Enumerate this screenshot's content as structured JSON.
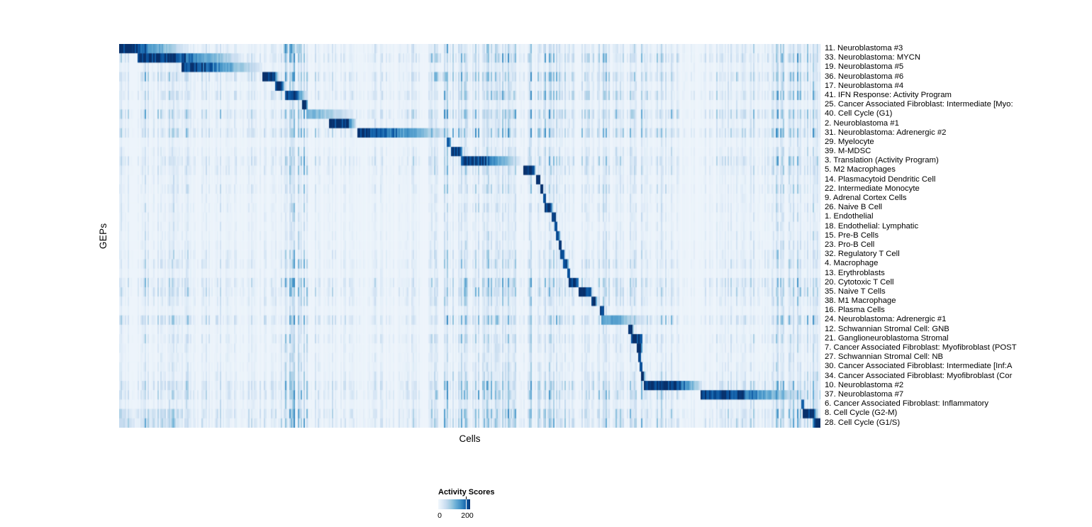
{
  "chart_data": {
    "type": "heatmap",
    "xlabel": "Cells",
    "ylabel": "GEPs",
    "colorbar": {
      "title": "Activity Scores",
      "tick_labels": [
        "0",
        "200"
      ],
      "tick_fraction": 0.867,
      "low_color": "#f2f7fc",
      "high_color": "#08306b"
    },
    "palette": [
      "#f2f7fc",
      "#deebf7",
      "#c6dbef",
      "#9ecae1",
      "#6baed6",
      "#4292c6",
      "#2171b5",
      "#08519c",
      "#08306b"
    ],
    "palette_positions": [
      0,
      0.12,
      0.25,
      0.4,
      0.55,
      0.7,
      0.82,
      0.92,
      1
    ],
    "texture": {
      "bands": [
        [
          0,
          0.1,
          0.55
        ],
        [
          0.1,
          0.235,
          0.45
        ],
        [
          0.235,
          0.27,
          0.95
        ],
        [
          0.27,
          0.44,
          0.35
        ],
        [
          0.44,
          0.52,
          0.85
        ],
        [
          0.52,
          0.63,
          0.9
        ],
        [
          0.63,
          0.7,
          0.55
        ],
        [
          0.7,
          0.8,
          0.65
        ],
        [
          0.8,
          0.86,
          0.35
        ],
        [
          0.86,
          0.935,
          0.55
        ],
        [
          0.935,
          1.0,
          0.95
        ]
      ]
    },
    "rows": [
      {
        "label": "11. Neuroblastoma #3",
        "block": [
          0.0,
          0.025,
          0.093
        ],
        "peak": 1.0,
        "noise": 0.7,
        "extra": [
          [
            0.235,
            0.259,
            0.85
          ]
        ]
      },
      {
        "label": "33. Neuroblastoma: MYCN",
        "block": [
          0.027,
          0.083,
          0.174
        ],
        "peak": 1.0,
        "noise": 1.0,
        "extra": [
          [
            0.444,
            0.458,
            0.55
          ]
        ]
      },
      {
        "label": "19. Neuroblastoma #5",
        "block": [
          0.088,
          0.118,
          0.204
        ],
        "peak": 0.95,
        "noise": 0.5
      },
      {
        "label": "36. Neuroblastoma #6",
        "block": [
          0.205,
          0.22,
          0.228
        ],
        "peak": 1.0,
        "noise": 1.0,
        "extra": [
          [
            0.448,
            0.468,
            0.75
          ]
        ]
      },
      {
        "label": "17. Neuroblastoma #4",
        "block": [
          0.223,
          0.233,
          0.236
        ],
        "peak": 1.0,
        "noise": 0.6
      },
      {
        "label": "41. IFN Response: Activity Program",
        "block": [
          0.236,
          0.25,
          0.268
        ],
        "peak": 1.0,
        "noise": 1.0,
        "extra": [
          [
            0.531,
            0.549,
            0.6
          ]
        ]
      },
      {
        "label": "25. Cancer Associated Fibroblast: Intermediate [Myo:",
        "block": [
          0.261,
          0.267,
          0.269
        ],
        "peak": 1.0,
        "noise": 0.45
      },
      {
        "label": "40. Cell Cycle (G1)",
        "block": [
          0.267,
          0.28,
          0.333
        ],
        "peak": 0.5,
        "noise": 1.1
      },
      {
        "label": "2. Neuroblastoma #1",
        "block": [
          0.298,
          0.326,
          0.338
        ],
        "peak": 1.0,
        "noise": 0.6
      },
      {
        "label": "31. Neuroblastoma: Adrenergic #2",
        "block": [
          0.339,
          0.376,
          0.47
        ],
        "peak": 0.95,
        "noise": 1.1
      },
      {
        "label": "29. Myelocyte",
        "block": [
          0.467,
          0.471,
          0.473
        ],
        "peak": 0.9,
        "noise": 0.35
      },
      {
        "label": "39. M-MDSC",
        "block": [
          0.472,
          0.487,
          0.49
        ],
        "peak": 1.0,
        "noise": 0.55
      },
      {
        "label": "3. Translation (Activity Program)",
        "block": [
          0.487,
          0.518,
          0.571
        ],
        "peak": 0.95,
        "noise": 0.9
      },
      {
        "label": "5. M2 Macrophages",
        "block": [
          0.576,
          0.59,
          0.594
        ],
        "peak": 1.0,
        "noise": 0.7
      },
      {
        "label": "14. Plasmacytoid Dendritic Cell",
        "block": [
          0.594,
          0.6,
          0.601
        ],
        "peak": 1.0,
        "noise": 0.45
      },
      {
        "label": "22. Intermediate Monocyte",
        "block": [
          0.599,
          0.603,
          0.604
        ],
        "peak": 1.0,
        "noise": 0.6
      },
      {
        "label": "9. Adrenal Cortex Cells",
        "block": [
          0.604,
          0.607,
          0.608
        ],
        "peak": 0.95,
        "noise": 0.4
      },
      {
        "label": "26. Naive B Cell",
        "block": [
          0.606,
          0.616,
          0.618
        ],
        "peak": 1.0,
        "noise": 0.5
      },
      {
        "label": "1. Endothelial",
        "block": [
          0.617,
          0.622,
          0.623
        ],
        "peak": 1.0,
        "noise": 0.4
      },
      {
        "label": "18. Endothelial: Lymphatic",
        "block": [
          0.62,
          0.624,
          0.625
        ],
        "peak": 0.95,
        "noise": 0.4
      },
      {
        "label": "15. Pre-B Cells",
        "block": [
          0.623,
          0.627,
          0.628
        ],
        "peak": 0.95,
        "noise": 0.45
      },
      {
        "label": "23. Pro-B Cell",
        "block": [
          0.626,
          0.63,
          0.631
        ],
        "peak": 1.0,
        "noise": 0.45
      },
      {
        "label": "32. Regulatory T Cell",
        "block": [
          0.629,
          0.634,
          0.635
        ],
        "peak": 0.95,
        "noise": 0.6
      },
      {
        "label": "4. Macrophage",
        "block": [
          0.633,
          0.639,
          0.64
        ],
        "peak": 0.95,
        "noise": 0.7
      },
      {
        "label": "13. Erythroblasts",
        "block": [
          0.638,
          0.642,
          0.643
        ],
        "peak": 0.9,
        "noise": 0.4
      },
      {
        "label": "20. Cytotoxic T Cell",
        "block": [
          0.64,
          0.653,
          0.655
        ],
        "peak": 1.0,
        "noise": 0.9
      },
      {
        "label": "35. Naive T Cells",
        "block": [
          0.654,
          0.672,
          0.674
        ],
        "peak": 1.0,
        "noise": 0.9
      },
      {
        "label": "38. M1 Macrophage",
        "block": [
          0.673,
          0.679,
          0.681
        ],
        "peak": 1.0,
        "noise": 0.65
      },
      {
        "label": "16. Plasma Cells",
        "block": [
          0.685,
          0.69,
          0.691
        ],
        "peak": 0.95,
        "noise": 0.4
      },
      {
        "label": "24. Neuroblastoma: Adrenergic #1",
        "block": [
          0.687,
          0.71,
          0.745
        ],
        "peak": 0.6,
        "noise": 1.0
      },
      {
        "label": "12. Schwannian Stromal Cell: GNB",
        "block": [
          0.726,
          0.731,
          0.733
        ],
        "peak": 1.0,
        "noise": 0.4
      },
      {
        "label": "21. Ganglioneuroblastoma Stromal",
        "block": [
          0.73,
          0.744,
          0.746
        ],
        "peak": 1.0,
        "noise": 0.7
      },
      {
        "label": "7. Cancer Associated Fibroblast: Myofibroblast (POST",
        "block": [
          0.738,
          0.744,
          0.745
        ],
        "peak": 1.0,
        "noise": 0.5
      },
      {
        "label": "27. Schwannian Stromal Cell: NB",
        "block": [
          0.739,
          0.743,
          0.744
        ],
        "peak": 0.95,
        "noise": 0.45
      },
      {
        "label": "30. Cancer Associated Fibroblast: Intermediate [Inf:A",
        "block": [
          0.742,
          0.745,
          0.746
        ],
        "peak": 0.95,
        "noise": 0.5
      },
      {
        "label": "34. Cancer Associated Fibroblast: Myofibroblast (Cor",
        "block": [
          0.744,
          0.748,
          0.749
        ],
        "peak": 1.0,
        "noise": 0.6
      },
      {
        "label": "10. Neuroblastoma #2",
        "block": [
          0.747,
          0.796,
          0.831
        ],
        "peak": 1.0,
        "noise": 1.0
      },
      {
        "label": "37. Neuroblastoma #7",
        "block": [
          0.829,
          0.882,
          0.976
        ],
        "peak": 0.95,
        "noise": 1.0
      },
      {
        "label": "6. Cancer Associated Fibroblast: Inflammatory",
        "block": [
          0.971,
          0.975,
          0.977
        ],
        "peak": 0.9,
        "noise": 0.6
      },
      {
        "label": "8. Cell Cycle (G2-M)",
        "block": [
          0.974,
          0.99,
          0.995
        ],
        "peak": 1.0,
        "noise": 1.0,
        "extra": [
          [
            0.0,
            0.09,
            0.4
          ]
        ]
      },
      {
        "label": "28. Cell Cycle (G1/S)",
        "block": [
          0.99,
          1.0,
          1.0
        ],
        "peak": 1.0,
        "noise": 0.95,
        "extra": [
          [
            0.0,
            0.08,
            0.45
          ]
        ]
      }
    ]
  }
}
